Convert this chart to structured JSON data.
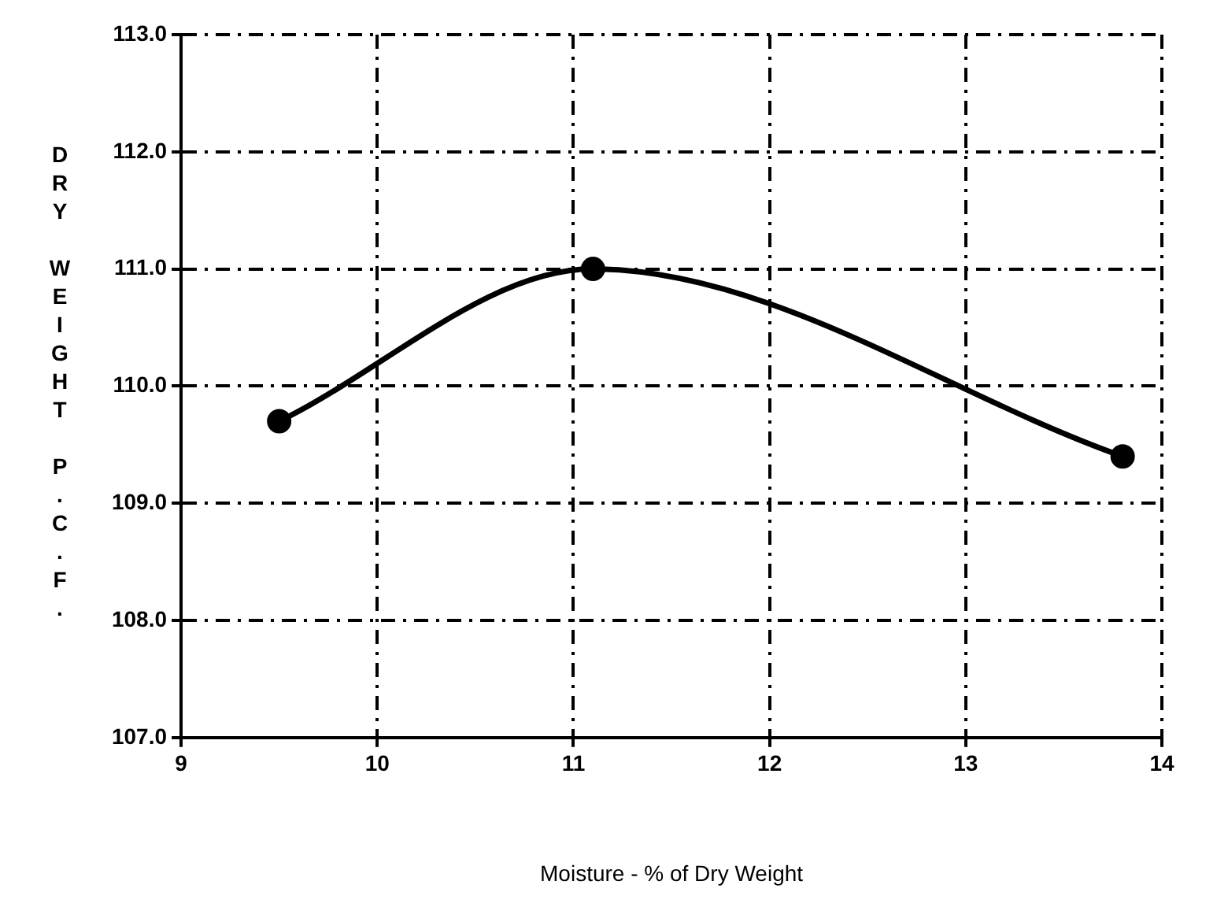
{
  "chart_data": {
    "type": "line",
    "xlabel": "Moisture - % of Dry Weight",
    "ylabel": "DRY WEIGHT P.C.F.",
    "x": [
      9.5,
      11.1,
      13.8
    ],
    "values": [
      109.7,
      111.0,
      109.4
    ],
    "color": "#000000",
    "marker": "circle",
    "line_style": "solid",
    "grid": true,
    "xlim": [
      9,
      14
    ],
    "xticks": [
      9,
      10,
      11,
      12,
      13,
      14
    ],
    "ylim": [
      107,
      113
    ],
    "yticks": [
      {
        "value": 107,
        "label": "107.0"
      },
      {
        "value": 108,
        "label": "108.0"
      },
      {
        "value": 109,
        "label": "109.0"
      },
      {
        "value": 110,
        "label": "110.0"
      },
      {
        "value": 111,
        "label": "111.0"
      },
      {
        "value": 112,
        "label": "112.0"
      },
      {
        "value": 113,
        "label": "113.0"
      }
    ]
  }
}
